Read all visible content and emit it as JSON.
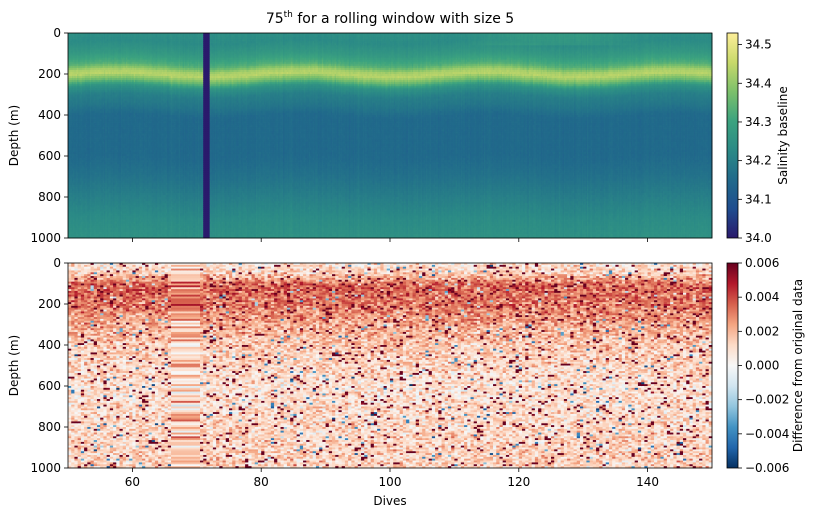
{
  "chart_data": [
    {
      "type": "heatmap",
      "title": "75",
      "title_sup": "th",
      "title_suffix": " for a rolling window with size 5",
      "ylabel": "Depth (m)",
      "xlim": [
        50,
        150
      ],
      "ylim": [
        1000,
        0
      ],
      "x_ticks": [
        60,
        80,
        100,
        120,
        140
      ],
      "y_ticks": [
        0,
        200,
        400,
        600,
        800,
        1000
      ],
      "y_tick_labels": [
        "0",
        "200",
        "400",
        "600",
        "800",
        "1000"
      ],
      "x_tick_labels_visible": false,
      "colormap": "haline",
      "colorbar": {
        "label": "Salinity baseline",
        "range": [
          34.0,
          34.53
        ],
        "ticks": [
          34.0,
          34.1,
          34.2,
          34.3,
          34.4,
          34.5
        ],
        "tick_labels": [
          "34.0",
          "34.1",
          "34.2",
          "34.3",
          "34.4",
          "34.5"
        ],
        "colors": [
          "#2a1a6c",
          "#1f4d8f",
          "#216a8b",
          "#2b8a86",
          "#3ca37f",
          "#7cc06b",
          "#c8d96a",
          "#fdee99"
        ]
      },
      "profile": {
        "depth": [
          0,
          40,
          100,
          150,
          180,
          200,
          230,
          260,
          300,
          350,
          400,
          600,
          700,
          800,
          900,
          1000
        ],
        "value": [
          34.24,
          34.23,
          34.27,
          34.33,
          34.42,
          34.44,
          34.36,
          34.25,
          34.2,
          34.18,
          34.15,
          34.15,
          34.17,
          34.2,
          34.23,
          34.25
        ]
      },
      "missing_dive_range": [
        70.9,
        71.9
      ],
      "missing_value": 34.0
    },
    {
      "type": "heatmap",
      "xlabel": "Dives",
      "ylabel": "Depth (m)",
      "xlim": [
        50,
        150
      ],
      "ylim": [
        1000,
        0
      ],
      "x_ticks": [
        60,
        80,
        100,
        120,
        140
      ],
      "x_tick_labels": [
        "60",
        "80",
        "100",
        "120",
        "140"
      ],
      "y_ticks": [
        0,
        200,
        400,
        600,
        800,
        1000
      ],
      "y_tick_labels": [
        "0",
        "200",
        "400",
        "600",
        "800",
        "1000"
      ],
      "colormap": "RdBu_r",
      "colorbar": {
        "label": "Difference from original data",
        "range": [
          -0.006,
          0.006
        ],
        "ticks": [
          -0.006,
          -0.004,
          -0.002,
          0.0,
          0.002,
          0.004,
          0.006
        ],
        "tick_labels": [
          "−0.006",
          "−0.004",
          "−0.002",
          "0.000",
          "0.002",
          "0.004",
          "0.006"
        ],
        "colors": [
          "#053061",
          "#2166ac",
          "#4393c3",
          "#92c5de",
          "#d1e5f0",
          "#f7f7f7",
          "#fddbc7",
          "#f4a582",
          "#d6604d",
          "#b2182b",
          "#67001f"
        ]
      },
      "mean_difference_profile": {
        "depth": [
          0,
          50,
          100,
          200,
          300,
          400,
          600,
          800,
          1000
        ],
        "value": [
          0.0008,
          0.0015,
          0.0035,
          0.0032,
          0.0022,
          0.0016,
          0.0009,
          0.0012,
          0.0014
        ]
      },
      "banded_dive_range": [
        66,
        70.5
      ]
    }
  ]
}
